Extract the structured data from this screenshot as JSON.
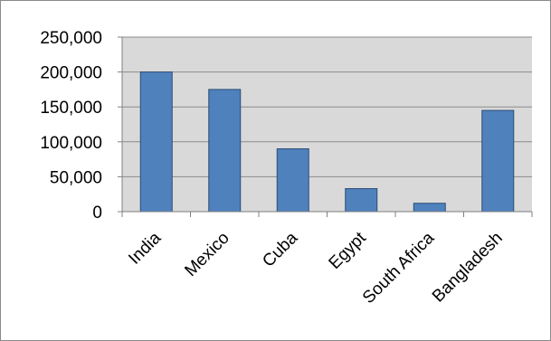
{
  "chart_data": {
    "type": "bar",
    "title": "",
    "xlabel": "",
    "ylabel": "",
    "categories": [
      "India",
      "Mexico",
      "Cuba",
      "Egypt",
      "South Africa",
      "Bangladesh"
    ],
    "values": [
      200000,
      175000,
      90000,
      33000,
      12000,
      145000
    ],
    "ylim": [
      0,
      250000
    ],
    "yticks": [
      0,
      50000,
      100000,
      150000,
      200000,
      250000
    ],
    "ytick_labels": [
      "0",
      "50,000",
      "100,000",
      "150,000",
      "200,000",
      "250,000"
    ],
    "grid": true,
    "legend": "none",
    "colors": {
      "bar_fill": "#4f81bd",
      "bar_stroke": "#2c4d75",
      "plot_background": "#d9d9d9",
      "gridline": "#8c8c8c",
      "axis": "#808080"
    }
  }
}
